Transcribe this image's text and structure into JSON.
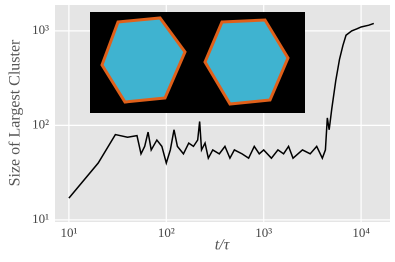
{
  "chart_data": {
    "type": "line",
    "x_label": "t/τ",
    "y_label": "Size of Largest Cluster",
    "log_x": true,
    "log_y": true,
    "grid": true,
    "color": "#000000",
    "xlim": [
      7.2,
      19800
    ],
    "ylim": [
      9.5,
      1880
    ],
    "xticks": [
      {
        "value": 10,
        "label": "10¹"
      },
      {
        "value": 100,
        "label": "10²"
      },
      {
        "value": 1000,
        "label": "10³"
      },
      {
        "value": 10000,
        "label": "10⁴"
      }
    ],
    "yticks": [
      {
        "value": 10,
        "label": "10¹"
      },
      {
        "value": 100,
        "label": "10²"
      },
      {
        "value": 1000,
        "label": "10³"
      }
    ],
    "x": [
      10,
      20,
      30,
      40,
      50,
      55,
      60,
      65,
      70,
      80,
      90,
      100,
      110,
      120,
      130,
      150,
      170,
      190,
      210,
      220,
      230,
      250,
      270,
      300,
      350,
      400,
      450,
      500,
      600,
      700,
      800,
      900,
      1000,
      1200,
      1400,
      1600,
      1800,
      2000,
      2500,
      3000,
      3500,
      4000,
      4300,
      4500,
      4700,
      5000,
      5500,
      6000,
      6500,
      7000,
      8000,
      9000,
      10000,
      12000,
      13500
    ],
    "values": [
      17,
      40,
      80,
      75,
      78,
      50,
      60,
      85,
      55,
      70,
      60,
      40,
      55,
      90,
      60,
      50,
      65,
      60,
      70,
      110,
      55,
      65,
      45,
      55,
      50,
      60,
      45,
      55,
      50,
      45,
      60,
      50,
      55,
      45,
      55,
      50,
      60,
      45,
      55,
      50,
      60,
      45,
      55,
      120,
      90,
      150,
      300,
      500,
      700,
      900,
      1000,
      1050,
      1100,
      1150,
      1200
    ]
  }
}
